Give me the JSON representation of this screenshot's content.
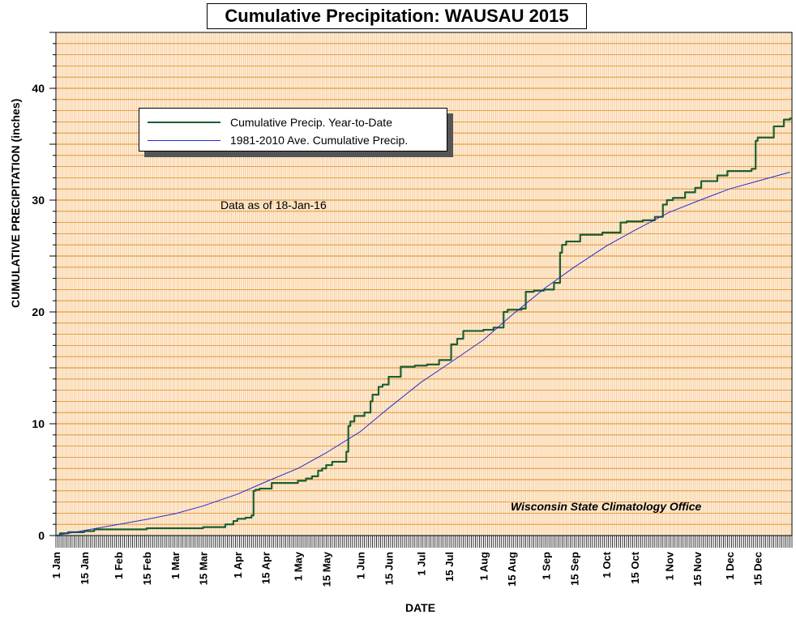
{
  "chart_data": {
    "type": "line",
    "title": "Cumulative Precipitation: WAUSAU 2015",
    "xlabel": "DATE",
    "ylabel": "CUMULATIVE PRECIPITATION (inches)",
    "ylim": [
      0,
      45
    ],
    "yticks": [
      0,
      10,
      20,
      30,
      40
    ],
    "x_domain": [
      "2015-01-01",
      "2015-12-31"
    ],
    "xticks": [
      {
        "date": "2015-01-01",
        "label": "1 Jan"
      },
      {
        "date": "2015-01-15",
        "label": "15 Jan"
      },
      {
        "date": "2015-02-01",
        "label": "1 Feb"
      },
      {
        "date": "2015-02-15",
        "label": "15 Feb"
      },
      {
        "date": "2015-03-01",
        "label": "1 Mar"
      },
      {
        "date": "2015-03-15",
        "label": "15 Mar"
      },
      {
        "date": "2015-04-01",
        "label": "1 Apr"
      },
      {
        "date": "2015-04-15",
        "label": "15 Apr"
      },
      {
        "date": "2015-05-01",
        "label": "1 May"
      },
      {
        "date": "2015-05-15",
        "label": "15 May"
      },
      {
        "date": "2015-06-01",
        "label": "1 Jun"
      },
      {
        "date": "2015-06-15",
        "label": "15 Jun"
      },
      {
        "date": "2015-07-01",
        "label": "1 Jul"
      },
      {
        "date": "2015-07-15",
        "label": "15 Jul"
      },
      {
        "date": "2015-08-01",
        "label": "1 Aug"
      },
      {
        "date": "2015-08-15",
        "label": "15 Aug"
      },
      {
        "date": "2015-09-01",
        "label": "1 Sep"
      },
      {
        "date": "2015-09-15",
        "label": "15 Sep"
      },
      {
        "date": "2015-10-01",
        "label": "1 Oct"
      },
      {
        "date": "2015-10-15",
        "label": "15 Oct"
      },
      {
        "date": "2015-11-01",
        "label": "1 Nov"
      },
      {
        "date": "2015-11-15",
        "label": "15 Nov"
      },
      {
        "date": "2015-12-01",
        "label": "1 Dec"
      },
      {
        "date": "2015-12-15",
        "label": "15 Dec"
      }
    ],
    "grid": true,
    "legend_position": "upper-left",
    "series": [
      {
        "name": "Cumulative Precip. Year-to-Date",
        "color": "#1b5e2f",
        "style": "step",
        "points": [
          [
            "2015-01-01",
            0.0
          ],
          [
            "2015-01-03",
            0.2
          ],
          [
            "2015-01-07",
            0.3
          ],
          [
            "2015-01-15",
            0.4
          ],
          [
            "2015-01-20",
            0.55
          ],
          [
            "2015-02-15",
            0.65
          ],
          [
            "2015-03-15",
            0.75
          ],
          [
            "2015-03-26",
            1.0
          ],
          [
            "2015-03-30",
            1.3
          ],
          [
            "2015-04-01",
            1.5
          ],
          [
            "2015-04-05",
            1.6
          ],
          [
            "2015-04-08",
            1.8
          ],
          [
            "2015-04-09",
            4.0
          ],
          [
            "2015-04-10",
            4.1
          ],
          [
            "2015-04-12",
            4.2
          ],
          [
            "2015-04-18",
            4.7
          ],
          [
            "2015-05-01",
            4.9
          ],
          [
            "2015-05-05",
            5.1
          ],
          [
            "2015-05-08",
            5.3
          ],
          [
            "2015-05-11",
            5.8
          ],
          [
            "2015-05-13",
            6.0
          ],
          [
            "2015-05-15",
            6.3
          ],
          [
            "2015-05-18",
            6.6
          ],
          [
            "2015-05-25",
            7.5
          ],
          [
            "2015-05-26",
            9.8
          ],
          [
            "2015-05-27",
            10.2
          ],
          [
            "2015-05-29",
            10.7
          ],
          [
            "2015-06-03",
            11.0
          ],
          [
            "2015-06-06",
            12.0
          ],
          [
            "2015-06-07",
            12.6
          ],
          [
            "2015-06-10",
            13.3
          ],
          [
            "2015-06-12",
            13.5
          ],
          [
            "2015-06-15",
            14.2
          ],
          [
            "2015-06-21",
            15.1
          ],
          [
            "2015-06-28",
            15.2
          ],
          [
            "2015-07-04",
            15.3
          ],
          [
            "2015-07-10",
            15.7
          ],
          [
            "2015-07-16",
            17.1
          ],
          [
            "2015-07-19",
            17.6
          ],
          [
            "2015-07-22",
            18.3
          ],
          [
            "2015-08-01",
            18.4
          ],
          [
            "2015-08-06",
            18.6
          ],
          [
            "2015-08-11",
            20.0
          ],
          [
            "2015-08-13",
            20.2
          ],
          [
            "2015-08-20",
            20.3
          ],
          [
            "2015-08-22",
            21.8
          ],
          [
            "2015-08-26",
            21.9
          ],
          [
            "2015-08-31",
            22.0
          ],
          [
            "2015-09-05",
            22.6
          ],
          [
            "2015-09-08",
            25.3
          ],
          [
            "2015-09-09",
            26.0
          ],
          [
            "2015-09-11",
            26.3
          ],
          [
            "2015-09-18",
            26.9
          ],
          [
            "2015-09-29",
            27.1
          ],
          [
            "2015-10-08",
            28.0
          ],
          [
            "2015-10-11",
            28.1
          ],
          [
            "2015-10-19",
            28.2
          ],
          [
            "2015-10-25",
            28.5
          ],
          [
            "2015-10-29",
            29.6
          ],
          [
            "2015-10-31",
            30.0
          ],
          [
            "2015-11-03",
            30.2
          ],
          [
            "2015-11-09",
            30.7
          ],
          [
            "2015-11-14",
            31.1
          ],
          [
            "2015-11-17",
            31.7
          ],
          [
            "2015-11-25",
            32.2
          ],
          [
            "2015-11-30",
            32.6
          ],
          [
            "2015-12-12",
            32.8
          ],
          [
            "2015-12-14",
            35.3
          ],
          [
            "2015-12-15",
            35.6
          ],
          [
            "2015-12-23",
            36.6
          ],
          [
            "2015-12-28",
            37.2
          ],
          [
            "2015-12-31",
            37.3
          ]
        ]
      },
      {
        "name": "1981-2010 Ave. Cumulative Precip.",
        "color": "#2a2ad0",
        "style": "line",
        "points": [
          [
            "2015-01-01",
            0.0
          ],
          [
            "2015-01-15",
            0.45
          ],
          [
            "2015-02-01",
            1.0
          ],
          [
            "2015-02-15",
            1.45
          ],
          [
            "2015-03-01",
            1.95
          ],
          [
            "2015-03-15",
            2.65
          ],
          [
            "2015-04-01",
            3.7
          ],
          [
            "2015-04-15",
            4.8
          ],
          [
            "2015-05-01",
            6.0
          ],
          [
            "2015-05-15",
            7.4
          ],
          [
            "2015-06-01",
            9.3
          ],
          [
            "2015-06-15",
            11.4
          ],
          [
            "2015-07-01",
            13.7
          ],
          [
            "2015-07-15",
            15.4
          ],
          [
            "2015-08-01",
            17.5
          ],
          [
            "2015-08-15",
            19.7
          ],
          [
            "2015-09-01",
            22.2
          ],
          [
            "2015-09-15",
            24.0
          ],
          [
            "2015-10-01",
            25.9
          ],
          [
            "2015-10-15",
            27.3
          ],
          [
            "2015-11-01",
            28.9
          ],
          [
            "2015-11-15",
            29.9
          ],
          [
            "2015-12-01",
            31.0
          ],
          [
            "2015-12-15",
            31.7
          ],
          [
            "2015-12-31",
            32.5
          ]
        ]
      }
    ],
    "annotations": [
      "Data as of 18-Jan-16",
      "Wisconsin State Climatology Office"
    ]
  },
  "colors": {
    "plot_background": "#fdf0dc",
    "major_grid": "#e08a1e",
    "minor_vertical_grid": "#f4b878"
  }
}
